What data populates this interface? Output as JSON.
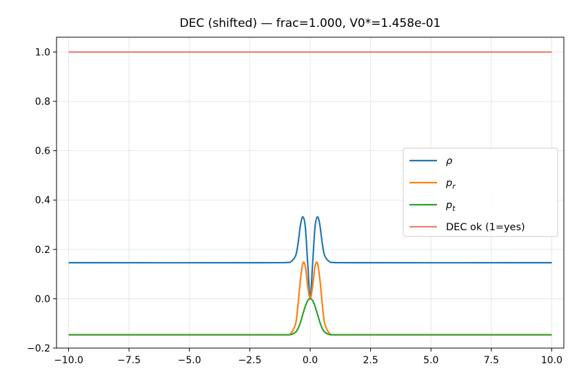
{
  "chart_data": {
    "type": "line",
    "title": "DEC (shifted) — frac=1.000, V0*=1.458e-01",
    "xlabel": "",
    "ylabel": "",
    "xlim": [
      -10.5,
      10.5
    ],
    "ylim": [
      -0.2,
      1.06
    ],
    "grid": true,
    "legend_position": "center-right",
    "x_ticks": [
      -10.0,
      -7.5,
      -5.0,
      -2.5,
      0.0,
      2.5,
      5.0,
      7.5,
      10.0
    ],
    "x_tick_labels": [
      "−10.0",
      "−7.5",
      "−5.0",
      "−2.5",
      "0.0",
      "2.5",
      "5.0",
      "7.5",
      "10.0"
    ],
    "y_ticks": [
      -0.2,
      0.0,
      0.2,
      0.4,
      0.6,
      0.8,
      1.0
    ],
    "y_tick_labels": [
      "−0.2",
      "0.0",
      "0.2",
      "0.4",
      "0.6",
      "0.8",
      "1.0"
    ],
    "x": [
      -10.0,
      -2.0,
      -1.0,
      -0.8,
      -0.6,
      -0.5,
      -0.4,
      -0.3,
      -0.2,
      -0.1,
      0.0,
      0.1,
      0.2,
      0.3,
      0.4,
      0.5,
      0.6,
      0.8,
      1.0,
      2.0,
      10.0
    ],
    "series": [
      {
        "name": "ρ",
        "legend_main": "ρ",
        "legend_sub": "",
        "color": "#1f77b4",
        "values": [
          0.146,
          0.146,
          0.147,
          0.15,
          0.175,
          0.225,
          0.3,
          0.332,
          0.29,
          0.14,
          0.0,
          0.14,
          0.29,
          0.332,
          0.3,
          0.225,
          0.175,
          0.15,
          0.147,
          0.146,
          0.146
        ]
      },
      {
        "name": "p_r",
        "legend_main": "p",
        "legend_sub": "r",
        "color": "#ff7f0e",
        "values": [
          -0.146,
          -0.146,
          -0.146,
          -0.14,
          -0.1,
          -0.02,
          0.08,
          0.145,
          0.13,
          0.05,
          0.0,
          0.05,
          0.13,
          0.145,
          0.08,
          -0.02,
          -0.1,
          -0.14,
          -0.146,
          -0.146,
          -0.146
        ]
      },
      {
        "name": "p_t",
        "legend_main": "p",
        "legend_sub": "t",
        "color": "#2ca02c",
        "values": [
          -0.146,
          -0.146,
          -0.146,
          -0.145,
          -0.135,
          -0.12,
          -0.095,
          -0.062,
          -0.03,
          -0.007,
          0.0,
          -0.007,
          -0.03,
          -0.062,
          -0.095,
          -0.12,
          -0.135,
          -0.145,
          -0.146,
          -0.146,
          -0.146
        ]
      },
      {
        "name": "DEC ok (1=yes)",
        "legend_main": "DEC ok (1=yes)",
        "legend_sub": "",
        "color": "#e8807a",
        "values": [
          1.0,
          1.0,
          1.0,
          1.0,
          1.0,
          1.0,
          1.0,
          1.0,
          1.0,
          1.0,
          1.0,
          1.0,
          1.0,
          1.0,
          1.0,
          1.0,
          1.0,
          1.0,
          1.0,
          1.0,
          1.0
        ]
      }
    ]
  }
}
